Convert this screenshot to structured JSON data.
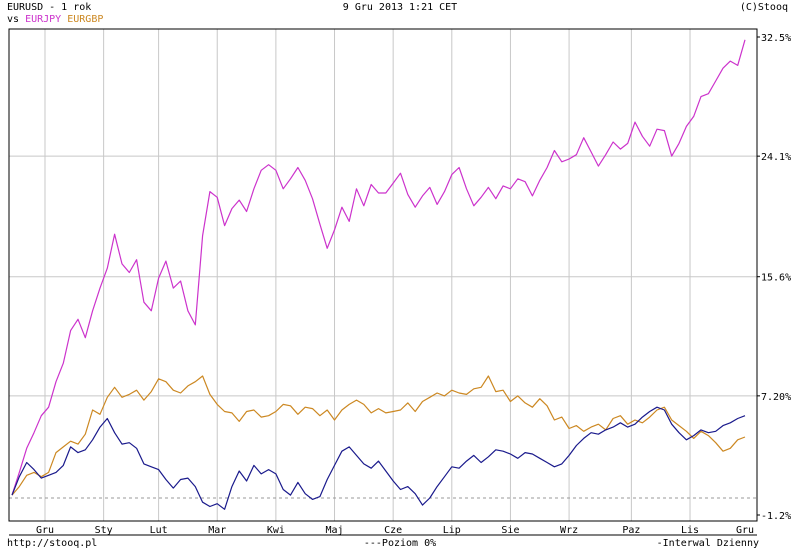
{
  "header": {
    "title": "EURUSD - 1 rok",
    "datetime": "9 Gru 2013 1:21 CET",
    "copyright": "(C)Stooq",
    "vs_label": "vs",
    "compare_1": "EURJPY",
    "compare_2": "EURGBP"
  },
  "footer": {
    "url": "http://stooq.pl",
    "level": "---Poziom 0%",
    "interval": "-Interwal Dzienny"
  },
  "colors": {
    "eurusd": "#1a1a8c",
    "eurjpy": "#cc33cc",
    "eurgbp": "#cc8822",
    "grid": "#c8c8c8",
    "zero_line": "#999999"
  },
  "chart_data": {
    "type": "line",
    "xlabel": "",
    "ylabel": "",
    "ylim": [
      -1.2,
      32.5
    ],
    "ytick_labels": [
      "32.5%",
      "24.1%",
      "15.6%",
      "7.20%",
      "-1.2%"
    ],
    "yticks": [
      32.5,
      24.1,
      15.6,
      7.2,
      -1.2
    ],
    "xtick_labels": [
      "Gru",
      "Sty",
      "Lut",
      "Mar",
      "Kwi",
      "Maj",
      "Cze",
      "Lip",
      "Sie",
      "Wrz",
      "Paz",
      "Lis",
      "Gru"
    ],
    "xticks": [
      0.045,
      0.125,
      0.2,
      0.28,
      0.36,
      0.44,
      0.52,
      0.6,
      0.68,
      0.76,
      0.845,
      0.925,
      1.0
    ],
    "baseline": 0,
    "grid": true,
    "series": [
      {
        "name": "EURJPY",
        "x": [
          0,
          0.01,
          0.02,
          0.03,
          0.04,
          0.05,
          0.06,
          0.07,
          0.08,
          0.09,
          0.1,
          0.11,
          0.12,
          0.13,
          0.14,
          0.15,
          0.16,
          0.17,
          0.18,
          0.19,
          0.2,
          0.21,
          0.22,
          0.23,
          0.24,
          0.25,
          0.26,
          0.27,
          0.28,
          0.29,
          0.3,
          0.31,
          0.32,
          0.33,
          0.34,
          0.35,
          0.36,
          0.37,
          0.38,
          0.39,
          0.4,
          0.41,
          0.42,
          0.43,
          0.44,
          0.45,
          0.46,
          0.47,
          0.48,
          0.49,
          0.5,
          0.51,
          0.52,
          0.53,
          0.54,
          0.55,
          0.56,
          0.57,
          0.58,
          0.59,
          0.6,
          0.61,
          0.62,
          0.63,
          0.64,
          0.65,
          0.66,
          0.67,
          0.68,
          0.69,
          0.7,
          0.71,
          0.72,
          0.73,
          0.74,
          0.75,
          0.76,
          0.77,
          0.78,
          0.79,
          0.8,
          0.81,
          0.82,
          0.83,
          0.84,
          0.85,
          0.86,
          0.87,
          0.88,
          0.89,
          0.9,
          0.91,
          0.92,
          0.93,
          0.94,
          0.95,
          0.96,
          0.97,
          0.98,
          0.99,
          1.0
        ],
        "values": [
          0.2,
          1.8,
          3.5,
          4.6,
          5.8,
          6.4,
          8.2,
          9.5,
          11.8,
          12.6,
          11.3,
          13.2,
          14.8,
          16.2,
          18.6,
          16.5,
          15.9,
          16.8,
          13.8,
          13.2,
          15.5,
          16.7,
          14.8,
          15.3,
          13.2,
          12.2,
          18.5,
          21.6,
          21.2,
          19.2,
          20.4,
          21.0,
          20.2,
          21.8,
          23.1,
          23.5,
          23.1,
          21.8,
          22.5,
          23.3,
          22.4,
          21.1,
          19.3,
          17.6,
          18.9,
          20.5,
          19.5,
          21.8,
          20.6,
          22.1,
          21.5,
          21.5,
          22.2,
          22.9,
          21.4,
          20.5,
          21.3,
          21.9,
          20.7,
          21.6,
          22.8,
          23.3,
          21.8,
          20.6,
          21.2,
          21.9,
          21.1,
          22.0,
          21.8,
          22.5,
          22.3,
          21.3,
          22.4,
          23.3,
          24.5,
          23.7,
          23.9,
          24.2,
          25.4,
          24.4,
          23.4,
          24.2,
          25.1,
          24.6,
          25.0,
          26.5,
          25.5,
          24.8,
          26.0,
          25.9,
          24.1,
          25.0,
          26.2,
          26.9,
          28.3,
          28.5,
          29.4,
          30.3,
          30.8,
          30.5,
          32.3
        ]
      },
      {
        "name": "EURGBP",
        "x": [
          0,
          0.01,
          0.02,
          0.03,
          0.04,
          0.05,
          0.06,
          0.07,
          0.08,
          0.09,
          0.1,
          0.11,
          0.12,
          0.13,
          0.14,
          0.15,
          0.16,
          0.17,
          0.18,
          0.19,
          0.2,
          0.21,
          0.22,
          0.23,
          0.24,
          0.25,
          0.26,
          0.27,
          0.28,
          0.29,
          0.3,
          0.31,
          0.32,
          0.33,
          0.34,
          0.35,
          0.36,
          0.37,
          0.38,
          0.39,
          0.4,
          0.41,
          0.42,
          0.43,
          0.44,
          0.45,
          0.46,
          0.47,
          0.48,
          0.49,
          0.5,
          0.51,
          0.52,
          0.53,
          0.54,
          0.55,
          0.56,
          0.57,
          0.58,
          0.59,
          0.6,
          0.61,
          0.62,
          0.63,
          0.64,
          0.65,
          0.66,
          0.67,
          0.68,
          0.69,
          0.7,
          0.71,
          0.72,
          0.73,
          0.74,
          0.75,
          0.76,
          0.77,
          0.78,
          0.79,
          0.8,
          0.81,
          0.82,
          0.83,
          0.84,
          0.85,
          0.86,
          0.87,
          0.88,
          0.89,
          0.9,
          0.91,
          0.92,
          0.93,
          0.94,
          0.95,
          0.96,
          0.97,
          0.98,
          0.99,
          1.0
        ],
        "values": [
          0.2,
          0.8,
          1.6,
          1.8,
          1.5,
          1.8,
          3.2,
          3.6,
          4.0,
          3.8,
          4.5,
          6.2,
          5.9,
          7.1,
          7.8,
          7.1,
          7.3,
          7.6,
          6.9,
          7.5,
          8.4,
          8.2,
          7.6,
          7.4,
          7.9,
          8.2,
          8.6,
          7.3,
          6.6,
          6.1,
          6.0,
          5.4,
          6.1,
          6.2,
          5.7,
          5.8,
          6.1,
          6.6,
          6.5,
          5.9,
          6.4,
          6.3,
          5.8,
          6.2,
          5.5,
          6.2,
          6.6,
          6.9,
          6.6,
          6.0,
          6.3,
          6.0,
          6.1,
          6.2,
          6.7,
          6.1,
          6.8,
          7.1,
          7.4,
          7.2,
          7.6,
          7.4,
          7.3,
          7.7,
          7.8,
          8.6,
          7.5,
          7.6,
          6.8,
          7.2,
          6.7,
          6.4,
          7.0,
          6.5,
          5.5,
          5.7,
          4.9,
          5.1,
          4.7,
          5.0,
          5.2,
          4.8,
          5.6,
          5.8,
          5.2,
          5.5,
          5.3,
          5.7,
          6.2,
          6.4,
          5.5,
          5.1,
          4.7,
          4.2,
          4.7,
          4.4,
          3.9,
          3.3,
          3.5,
          4.1,
          4.3
        ]
      },
      {
        "name": "EURUSD",
        "x": [
          0,
          0.01,
          0.02,
          0.03,
          0.04,
          0.05,
          0.06,
          0.07,
          0.08,
          0.09,
          0.1,
          0.11,
          0.12,
          0.13,
          0.14,
          0.15,
          0.16,
          0.17,
          0.18,
          0.19,
          0.2,
          0.21,
          0.22,
          0.23,
          0.24,
          0.25,
          0.26,
          0.27,
          0.28,
          0.29,
          0.3,
          0.31,
          0.32,
          0.33,
          0.34,
          0.35,
          0.36,
          0.37,
          0.38,
          0.39,
          0.4,
          0.41,
          0.42,
          0.43,
          0.44,
          0.45,
          0.46,
          0.47,
          0.48,
          0.49,
          0.5,
          0.51,
          0.52,
          0.53,
          0.54,
          0.55,
          0.56,
          0.57,
          0.58,
          0.59,
          0.6,
          0.61,
          0.62,
          0.63,
          0.64,
          0.65,
          0.66,
          0.67,
          0.68,
          0.69,
          0.7,
          0.71,
          0.72,
          0.73,
          0.74,
          0.75,
          0.76,
          0.77,
          0.78,
          0.79,
          0.8,
          0.81,
          0.82,
          0.83,
          0.84,
          0.85,
          0.86,
          0.87,
          0.88,
          0.89,
          0.9,
          0.91,
          0.92,
          0.93,
          0.94,
          0.95,
          0.96,
          0.97,
          0.98,
          0.99,
          1.0
        ],
        "values": [
          0.2,
          1.5,
          2.5,
          2.0,
          1.4,
          1.6,
          1.8,
          2.3,
          3.6,
          3.2,
          3.4,
          4.1,
          5.0,
          5.6,
          4.6,
          3.8,
          3.9,
          3.5,
          2.4,
          2.2,
          2.0,
          1.3,
          0.7,
          1.3,
          1.4,
          0.8,
          -0.3,
          -0.6,
          -0.4,
          -0.8,
          0.8,
          1.9,
          1.2,
          2.3,
          1.7,
          2.0,
          1.7,
          0.6,
          0.2,
          1.1,
          0.3,
          -0.1,
          0.1,
          1.3,
          2.3,
          3.3,
          3.6,
          3.0,
          2.4,
          2.1,
          2.6,
          1.9,
          1.2,
          0.6,
          0.8,
          0.3,
          -0.5,
          0.0,
          0.8,
          1.5,
          2.2,
          2.1,
          2.6,
          3.0,
          2.5,
          2.9,
          3.4,
          3.3,
          3.1,
          2.8,
          3.2,
          3.1,
          2.8,
          2.5,
          2.2,
          2.4,
          3.0,
          3.7,
          4.2,
          4.6,
          4.5,
          4.8,
          5.0,
          5.3,
          5.0,
          5.2,
          5.7,
          6.1,
          6.4,
          6.2,
          5.2,
          4.6,
          4.1,
          4.4,
          4.8,
          4.6,
          4.7,
          5.1,
          5.3,
          5.6,
          5.8
        ]
      }
    ]
  }
}
